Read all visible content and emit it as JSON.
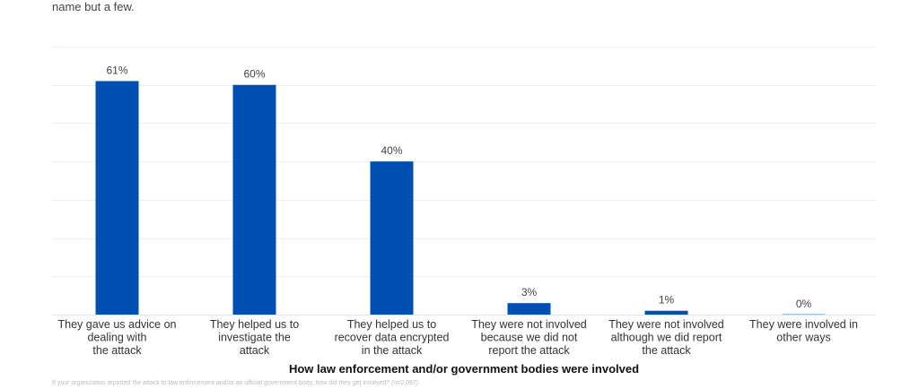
{
  "intro_text_tail": "name but a few.",
  "footnote": "If your organization reported the attack to law enforcement and/or an official government body, how did they get involved? (n=2,097)",
  "colors": {
    "bar": "#0050b3",
    "zero_bar": "#a9c7e8",
    "grid": "#eeeeee",
    "label": "#444444"
  },
  "chart_data": {
    "type": "bar",
    "title": "",
    "xlabel": "How law enforcement and/or government bodies were involved",
    "ylabel": "",
    "ylim": [
      0,
      70
    ],
    "grid": true,
    "gridline_step": 10,
    "value_suffix": "%",
    "categories": [
      [
        "They gave us advice on",
        "dealing with",
        "the attack"
      ],
      [
        "They helped us to",
        "investigate the",
        "attack"
      ],
      [
        "They helped us to",
        "recover data encrypted",
        "in the attack"
      ],
      [
        "They were not involved",
        "because we did not",
        "report the attack"
      ],
      [
        "They were not involved",
        "although we did report",
        "the attack"
      ],
      [
        "They were involved in",
        "other ways"
      ]
    ],
    "values": [
      61,
      60,
      40,
      3,
      1,
      0
    ],
    "data_labels": [
      "61%",
      "60%",
      "40%",
      "3%",
      "1%",
      "0%"
    ]
  }
}
